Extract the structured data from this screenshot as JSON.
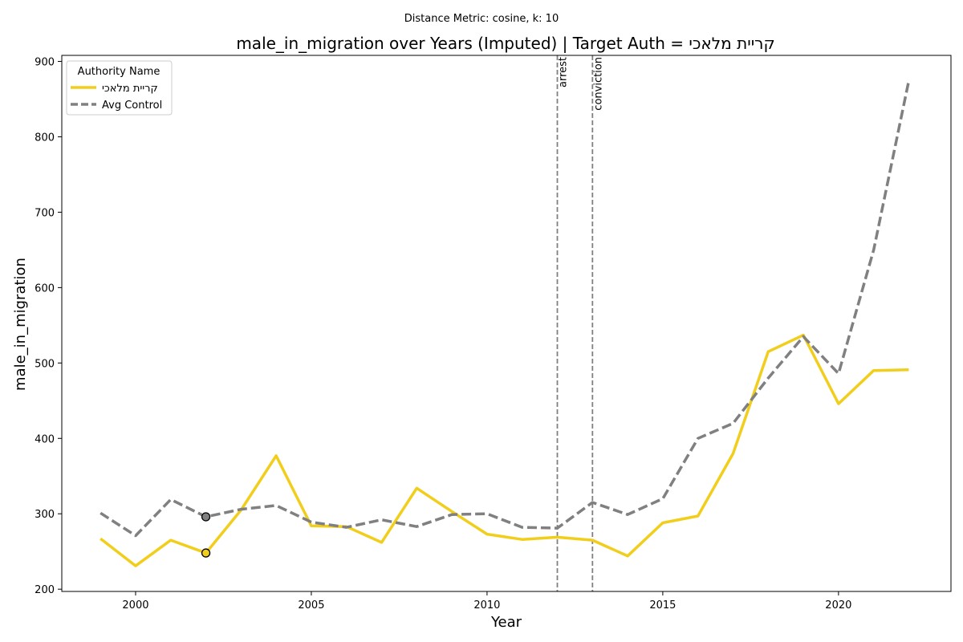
{
  "chart_data": {
    "type": "line",
    "suptitle": "Distance Metric: cosine, k: 10",
    "title": "male_in_migration over Years (Imputed) | Target Auth = קריית מלאכי",
    "xlabel": "Year",
    "ylabel": "male_in_migration",
    "xlim": [
      1997.9,
      2023.2
    ],
    "ylim": [
      197,
      908
    ],
    "xticks": [
      2000,
      2005,
      2010,
      2015,
      2020
    ],
    "yticks": [
      200,
      300,
      400,
      500,
      600,
      700,
      800,
      900
    ],
    "grid": false,
    "legend": {
      "title": "Authority Name",
      "placement": "top-left"
    },
    "series": [
      {
        "name": "קריית מלאכי",
        "color": "#f2ce1c",
        "style": "solid",
        "x": [
          1999,
          2000,
          2001,
          2002,
          2003,
          2004,
          2005,
          2006,
          2007,
          2008,
          2009,
          2010,
          2011,
          2012,
          2013,
          2014,
          2015,
          2016,
          2017,
          2018,
          2019,
          2020,
          2021,
          2022
        ],
        "y": [
          267,
          231,
          265,
          248,
          305,
          377,
          284,
          283,
          262,
          334,
          303,
          273,
          266,
          269,
          265,
          244,
          288,
          297,
          380,
          515,
          537,
          446,
          490,
          491
        ]
      },
      {
        "name": "Avg Control",
        "color": "#808080",
        "style": "dashed",
        "x": [
          1999,
          2000,
          2001,
          2002,
          2003,
          2004,
          2005,
          2006,
          2007,
          2008,
          2009,
          2010,
          2011,
          2012,
          2013,
          2014,
          2015,
          2016,
          2017,
          2018,
          2019,
          2020,
          2021,
          2022
        ],
        "y": [
          301,
          271,
          319,
          296,
          306,
          311,
          289,
          282,
          292,
          283,
          299,
          300,
          282,
          281,
          315,
          299,
          320,
          400,
          420,
          480,
          535,
          486,
          650,
          874
        ]
      }
    ],
    "markers": [
      {
        "series": "קריית מלאכי",
        "x": 2002,
        "y": 248,
        "color": "#f2ce1c"
      },
      {
        "series": "Avg Control",
        "x": 2002,
        "y": 296,
        "color": "#808080"
      }
    ],
    "events": [
      {
        "label": "arrest",
        "x": 2012
      },
      {
        "label": "conviction",
        "x": 2013
      }
    ]
  }
}
